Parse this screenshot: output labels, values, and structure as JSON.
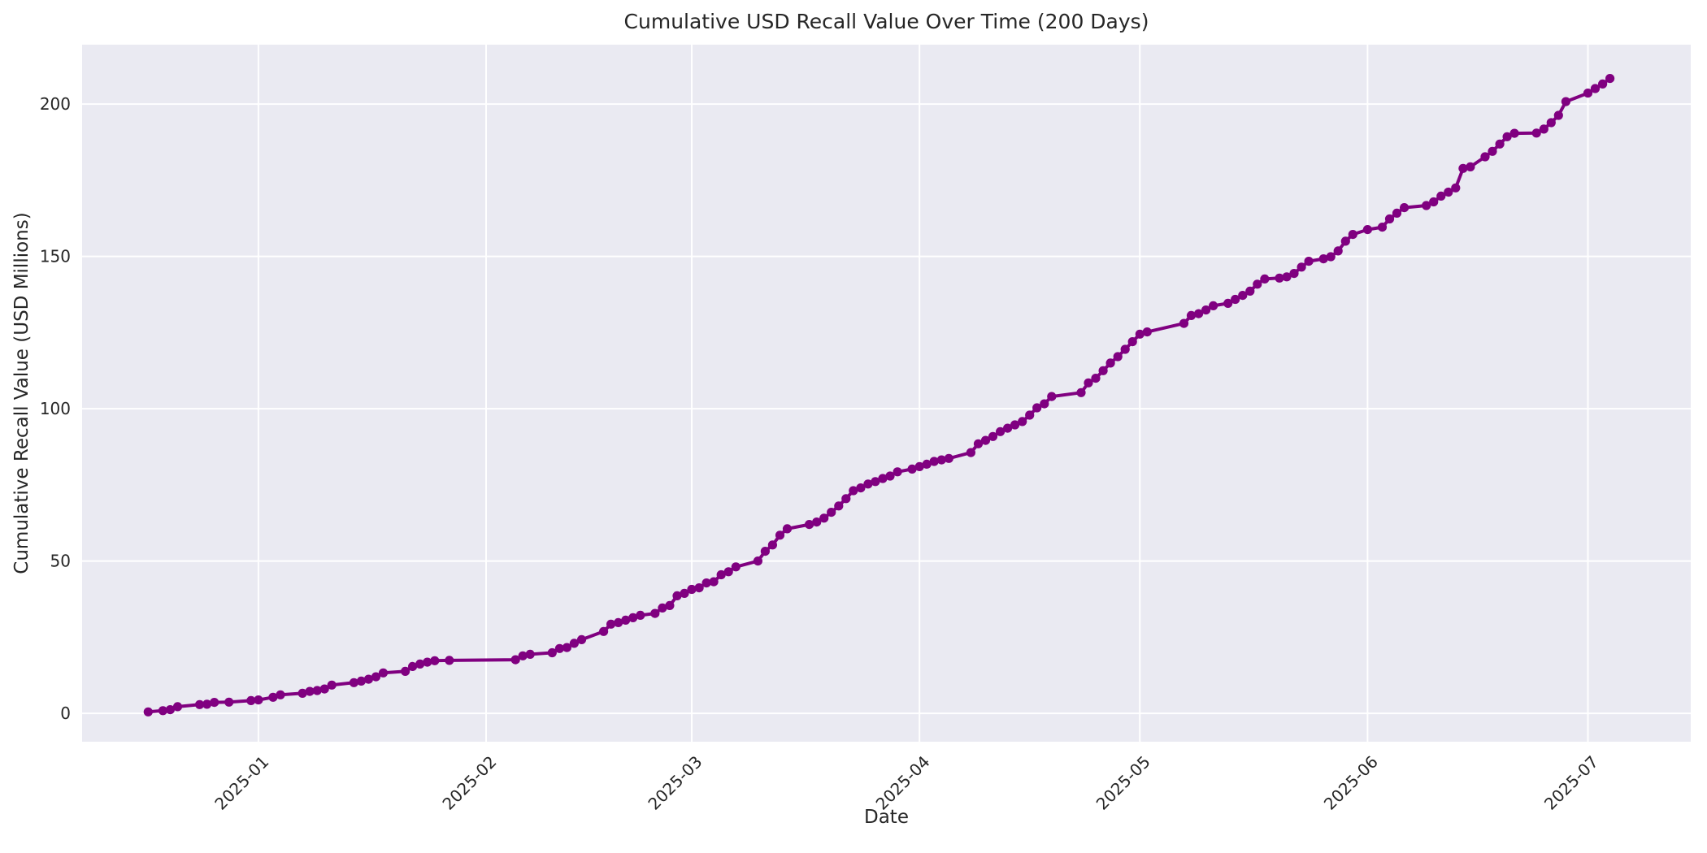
{
  "figure": {
    "title": "Cumulative USD Recall Value Over Time (200 Days)",
    "background_color": "#ffffff",
    "plot_background_color": "#eaeaf2",
    "grid_color": "#ffffff",
    "text_color": "#262626",
    "line_color": "#800080"
  },
  "chart_data": {
    "type": "line",
    "title": "Cumulative USD Recall Value Over Time (200 Days)",
    "xlabel": "Date",
    "ylabel": "Cumulative Recall Value (USD Millions)",
    "series_name": "Cumulative USD recall value",
    "marker": "circle",
    "grid": true,
    "legend_position": "none",
    "xlim": [
      "2024-12-08",
      "2025-07-15"
    ],
    "ylim": [
      -9.3,
      219.5
    ],
    "yticks": [
      0,
      50,
      100,
      150,
      200
    ],
    "xticks": [
      {
        "pos": "2025-01-01",
        "label": "2025-01"
      },
      {
        "pos": "2025-02-01",
        "label": "2025-02"
      },
      {
        "pos": "2025-03-01",
        "label": "2025-03"
      },
      {
        "pos": "2025-04-01",
        "label": "2025-04"
      },
      {
        "pos": "2025-05-01",
        "label": "2025-05"
      },
      {
        "pos": "2025-06-01",
        "label": "2025-06"
      },
      {
        "pos": "2025-07-01",
        "label": "2025-07"
      }
    ],
    "points": [
      [
        "2024-12-17",
        0.5
      ],
      [
        "2024-12-19",
        0.9
      ],
      [
        "2024-12-20",
        1.2
      ],
      [
        "2024-12-21",
        2.2
      ],
      [
        "2024-12-24",
        2.9
      ],
      [
        "2024-12-25",
        3.0
      ],
      [
        "2024-12-26",
        3.6
      ],
      [
        "2024-12-28",
        3.7
      ],
      [
        "2024-12-31",
        4.2
      ],
      [
        "2025-01-01",
        4.4
      ],
      [
        "2025-01-03",
        5.3
      ],
      [
        "2025-01-04",
        6.1
      ],
      [
        "2025-01-07",
        6.6
      ],
      [
        "2025-01-08",
        7.2
      ],
      [
        "2025-01-09",
        7.5
      ],
      [
        "2025-01-10",
        8.0
      ],
      [
        "2025-01-11",
        9.3
      ],
      [
        "2025-01-14",
        10.1
      ],
      [
        "2025-01-15",
        10.6
      ],
      [
        "2025-01-16",
        11.2
      ],
      [
        "2025-01-17",
        12.0
      ],
      [
        "2025-01-18",
        13.3
      ],
      [
        "2025-01-21",
        13.8
      ],
      [
        "2025-01-22",
        15.4
      ],
      [
        "2025-01-23",
        16.2
      ],
      [
        "2025-01-24",
        16.8
      ],
      [
        "2025-01-25",
        17.3
      ],
      [
        "2025-01-27",
        17.4
      ],
      [
        "2025-02-05",
        17.6
      ],
      [
        "2025-02-06",
        18.9
      ],
      [
        "2025-02-07",
        19.4
      ],
      [
        "2025-02-10",
        19.9
      ],
      [
        "2025-02-11",
        21.3
      ],
      [
        "2025-02-12",
        21.6
      ],
      [
        "2025-02-13",
        23.0
      ],
      [
        "2025-02-14",
        24.2
      ],
      [
        "2025-02-17",
        26.9
      ],
      [
        "2025-02-18",
        29.3
      ],
      [
        "2025-02-19",
        29.8
      ],
      [
        "2025-02-20",
        30.6
      ],
      [
        "2025-02-21",
        31.4
      ],
      [
        "2025-02-22",
        32.2
      ],
      [
        "2025-02-24",
        32.8
      ],
      [
        "2025-02-25",
        34.6
      ],
      [
        "2025-02-26",
        35.4
      ],
      [
        "2025-02-27",
        38.6
      ],
      [
        "2025-02-28",
        39.4
      ],
      [
        "2025-03-01",
        40.7
      ],
      [
        "2025-03-02",
        41.2
      ],
      [
        "2025-03-03",
        42.8
      ],
      [
        "2025-03-04",
        43.2
      ],
      [
        "2025-03-05",
        45.5
      ],
      [
        "2025-03-06",
        46.5
      ],
      [
        "2025-03-07",
        48.1
      ],
      [
        "2025-03-10",
        50.0
      ],
      [
        "2025-03-11",
        53.2
      ],
      [
        "2025-03-12",
        55.3
      ],
      [
        "2025-03-13",
        58.5
      ],
      [
        "2025-03-14",
        60.6
      ],
      [
        "2025-03-17",
        62.0
      ],
      [
        "2025-03-18",
        62.8
      ],
      [
        "2025-03-19",
        64.1
      ],
      [
        "2025-03-20",
        66.0
      ],
      [
        "2025-03-21",
        68.1
      ],
      [
        "2025-03-22",
        70.5
      ],
      [
        "2025-03-23",
        73.1
      ],
      [
        "2025-03-24",
        74.0
      ],
      [
        "2025-03-25",
        75.3
      ],
      [
        "2025-03-26",
        76.1
      ],
      [
        "2025-03-27",
        77.1
      ],
      [
        "2025-03-28",
        77.9
      ],
      [
        "2025-03-29",
        79.3
      ],
      [
        "2025-03-31",
        80.2
      ],
      [
        "2025-04-01",
        81.0
      ],
      [
        "2025-04-02",
        81.8
      ],
      [
        "2025-04-03",
        82.7
      ],
      [
        "2025-04-04",
        83.2
      ],
      [
        "2025-04-05",
        83.7
      ],
      [
        "2025-04-08",
        85.6
      ],
      [
        "2025-04-09",
        88.5
      ],
      [
        "2025-04-10",
        89.6
      ],
      [
        "2025-04-11",
        90.9
      ],
      [
        "2025-04-12",
        92.5
      ],
      [
        "2025-04-13",
        93.6
      ],
      [
        "2025-04-14",
        94.7
      ],
      [
        "2025-04-15",
        95.8
      ],
      [
        "2025-04-16",
        97.9
      ],
      [
        "2025-04-17",
        100.3
      ],
      [
        "2025-04-18",
        101.6
      ],
      [
        "2025-04-19",
        104.0
      ],
      [
        "2025-04-23",
        105.3
      ],
      [
        "2025-04-24",
        108.5
      ],
      [
        "2025-04-25",
        110.0
      ],
      [
        "2025-04-26",
        112.5
      ],
      [
        "2025-04-27",
        115.0
      ],
      [
        "2025-04-28",
        117.1
      ],
      [
        "2025-04-29",
        119.5
      ],
      [
        "2025-04-30",
        122.0
      ],
      [
        "2025-05-01",
        124.5
      ],
      [
        "2025-05-02",
        125.2
      ],
      [
        "2025-05-07",
        128.0
      ],
      [
        "2025-05-08",
        130.6
      ],
      [
        "2025-05-09",
        131.2
      ],
      [
        "2025-05-10",
        132.4
      ],
      [
        "2025-05-11",
        133.8
      ],
      [
        "2025-05-13",
        134.6
      ],
      [
        "2025-05-14",
        135.9
      ],
      [
        "2025-05-15",
        137.2
      ],
      [
        "2025-05-16",
        138.6
      ],
      [
        "2025-05-17",
        140.9
      ],
      [
        "2025-05-18",
        142.6
      ],
      [
        "2025-05-20",
        142.9
      ],
      [
        "2025-05-21",
        143.3
      ],
      [
        "2025-05-22",
        144.4
      ],
      [
        "2025-05-23",
        146.5
      ],
      [
        "2025-05-24",
        148.4
      ],
      [
        "2025-05-26",
        149.2
      ],
      [
        "2025-05-27",
        149.9
      ],
      [
        "2025-05-28",
        151.8
      ],
      [
        "2025-05-29",
        155.0
      ],
      [
        "2025-05-30",
        157.2
      ],
      [
        "2025-06-01",
        158.8
      ],
      [
        "2025-06-03",
        159.6
      ],
      [
        "2025-06-04",
        162.3
      ],
      [
        "2025-06-05",
        164.2
      ],
      [
        "2025-06-06",
        166.0
      ],
      [
        "2025-06-09",
        166.7
      ],
      [
        "2025-06-10",
        167.9
      ],
      [
        "2025-06-11",
        169.8
      ],
      [
        "2025-06-12",
        171.1
      ],
      [
        "2025-06-13",
        172.5
      ],
      [
        "2025-06-14",
        178.9
      ],
      [
        "2025-06-15",
        179.4
      ],
      [
        "2025-06-17",
        182.7
      ],
      [
        "2025-06-18",
        184.5
      ],
      [
        "2025-06-19",
        186.9
      ],
      [
        "2025-06-20",
        189.3
      ],
      [
        "2025-06-21",
        190.4
      ],
      [
        "2025-06-24",
        190.5
      ],
      [
        "2025-06-25",
        191.8
      ],
      [
        "2025-06-26",
        193.9
      ],
      [
        "2025-06-27",
        196.3
      ],
      [
        "2025-06-28",
        200.8
      ],
      [
        "2025-07-01",
        203.6
      ],
      [
        "2025-07-02",
        205.1
      ],
      [
        "2025-07-03",
        206.6
      ],
      [
        "2025-07-04",
        208.4
      ]
    ]
  }
}
